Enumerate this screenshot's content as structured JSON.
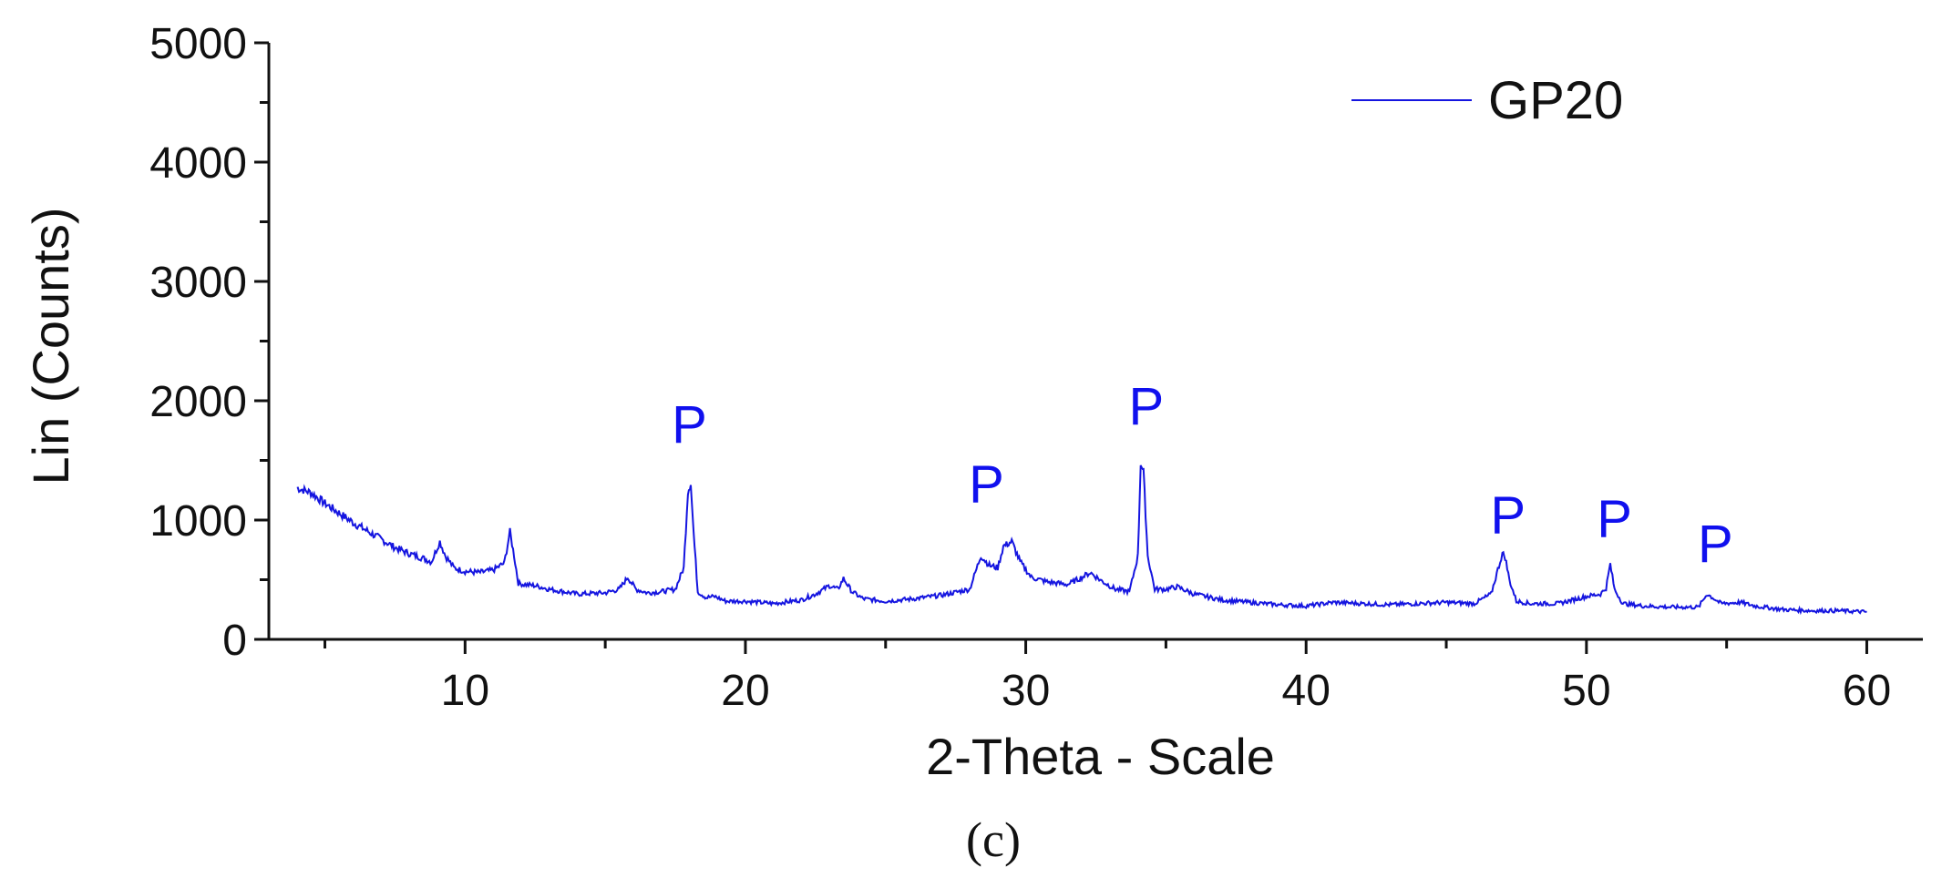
{
  "chart_data": {
    "type": "line",
    "title": "",
    "caption": "(c)",
    "xlabel": "2-Theta - Scale",
    "ylabel": "Lin (Counts)",
    "xlim": [
      3,
      62
    ],
    "ylim": [
      0,
      5000
    ],
    "x_ticks": [
      10,
      20,
      30,
      40,
      50,
      60
    ],
    "x_minor_ticks": [
      5,
      15,
      25,
      35,
      45,
      55
    ],
    "y_ticks": [
      0,
      1000,
      2000,
      3000,
      4000,
      5000
    ],
    "y_minor_step": 500,
    "legend": {
      "position": "top-right"
    },
    "series": [
      {
        "name": "GP20",
        "color": "#1515e0",
        "x": [
          4,
          4.5,
          5,
          5.5,
          6,
          6.5,
          7,
          7.5,
          8,
          8.5,
          8.8,
          9.1,
          9.3,
          9.6,
          10,
          10.5,
          11,
          11.4,
          11.6,
          11.75,
          11.9,
          12.1,
          12.5,
          13,
          14,
          15,
          15.5,
          15.8,
          16.1,
          16.5,
          17,
          17.5,
          17.8,
          17.95,
          18.05,
          18.15,
          18.3,
          18.6,
          18.9,
          19.3,
          20,
          21,
          22,
          22.5,
          23,
          23.3,
          23.5,
          23.8,
          24.2,
          25,
          26,
          27,
          28,
          28.4,
          28.7,
          29,
          29.2,
          29.5,
          29.8,
          30.2,
          30.8,
          31.5,
          32,
          32.3,
          32.7,
          33.2,
          33.7,
          34,
          34.1,
          34.2,
          34.35,
          34.6,
          35,
          35.4,
          36,
          37,
          38,
          39,
          40,
          41,
          42,
          43,
          44,
          45,
          46,
          46.6,
          47,
          47.1,
          47.25,
          47.5,
          48,
          49,
          50,
          50.5,
          50.7,
          50.85,
          51,
          51.3,
          52,
          53,
          54,
          54.3,
          54.5,
          54.8,
          55.5,
          56,
          57,
          58,
          59,
          60
        ],
        "y": [
          1270,
          1230,
          1140,
          1060,
          980,
          910,
          840,
          770,
          720,
          680,
          650,
          820,
          700,
          600,
          570,
          560,
          580,
          640,
          900,
          700,
          470,
          460,
          450,
          420,
          380,
          390,
          420,
          520,
          420,
          390,
          400,
          420,
          600,
          1240,
          1310,
          900,
          400,
          350,
          360,
          320,
          320,
          300,
          330,
          380,
          450,
          420,
          510,
          400,
          340,
          320,
          340,
          370,
          420,
          700,
          620,
          600,
          780,
          820,
          650,
          520,
          480,
          460,
          520,
          560,
          490,
          420,
          400,
          700,
          1480,
          1400,
          700,
          420,
          420,
          440,
          380,
          330,
          310,
          290,
          280,
          310,
          300,
          290,
          300,
          310,
          300,
          380,
          720,
          690,
          500,
          320,
          300,
          300,
          360,
          380,
          430,
          630,
          420,
          300,
          280,
          270,
          270,
          380,
          350,
          300,
          310,
          280,
          250,
          240,
          240,
          230
        ]
      }
    ],
    "annotations": [
      {
        "text": "P",
        "x": 18.0,
        "y": 1650
      },
      {
        "text": "P",
        "x": 28.6,
        "y": 1150
      },
      {
        "text": "P",
        "x": 34.3,
        "y": 1800
      },
      {
        "text": "P",
        "x": 47.2,
        "y": 890
      },
      {
        "text": "P",
        "x": 51.0,
        "y": 860
      },
      {
        "text": "P",
        "x": 54.6,
        "y": 650
      }
    ]
  }
}
